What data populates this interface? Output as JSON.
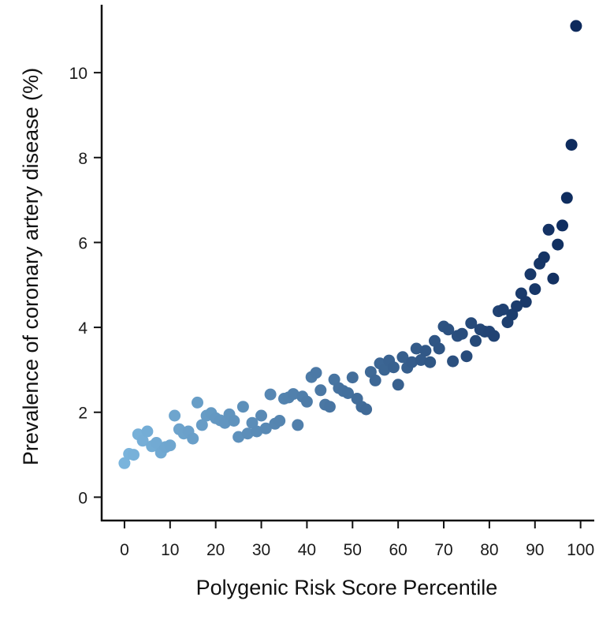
{
  "chart_data": {
    "type": "scatter",
    "title": "",
    "xlabel": "Polygenic Risk Score Percentile",
    "ylabel": "Prevalence of coronary artery disease (%)",
    "xlim": [
      -5,
      103
    ],
    "ylim": [
      -0.55,
      11.6
    ],
    "xticks": [
      0,
      10,
      20,
      30,
      40,
      50,
      60,
      70,
      80,
      90,
      100
    ],
    "yticks": [
      0,
      2,
      4,
      6,
      8,
      10
    ],
    "grid": false,
    "legend": "none",
    "colors": {
      "low": "#7ab4dc",
      "high": "#0d2a5c",
      "axis": "#111111"
    },
    "points": [
      [
        0,
        0.8
      ],
      [
        1,
        1.02
      ],
      [
        2,
        1.0
      ],
      [
        3,
        1.48
      ],
      [
        4,
        1.33
      ],
      [
        5,
        1.55
      ],
      [
        6,
        1.2
      ],
      [
        7,
        1.28
      ],
      [
        8,
        1.05
      ],
      [
        9,
        1.18
      ],
      [
        10,
        1.22
      ],
      [
        11,
        1.92
      ],
      [
        12,
        1.6
      ],
      [
        13,
        1.5
      ],
      [
        14,
        1.55
      ],
      [
        15,
        1.38
      ],
      [
        16,
        2.23
      ],
      [
        17,
        1.7
      ],
      [
        18,
        1.92
      ],
      [
        19,
        1.98
      ],
      [
        20,
        1.86
      ],
      [
        21,
        1.81
      ],
      [
        22,
        1.75
      ],
      [
        23,
        1.95
      ],
      [
        24,
        1.8
      ],
      [
        25,
        1.42
      ],
      [
        26,
        2.13
      ],
      [
        27,
        1.5
      ],
      [
        28,
        1.75
      ],
      [
        29,
        1.55
      ],
      [
        30,
        1.92
      ],
      [
        31,
        1.62
      ],
      [
        32,
        2.42
      ],
      [
        33,
        1.73
      ],
      [
        34,
        1.8
      ],
      [
        35,
        2.32
      ],
      [
        36,
        2.35
      ],
      [
        37,
        2.43
      ],
      [
        38,
        1.7
      ],
      [
        39,
        2.37
      ],
      [
        40,
        2.25
      ],
      [
        41,
        2.83
      ],
      [
        42,
        2.93
      ],
      [
        43,
        2.52
      ],
      [
        44,
        2.18
      ],
      [
        45,
        2.13
      ],
      [
        46,
        2.77
      ],
      [
        47,
        2.57
      ],
      [
        48,
        2.5
      ],
      [
        49,
        2.45
      ],
      [
        50,
        2.82
      ],
      [
        51,
        2.32
      ],
      [
        52,
        2.13
      ],
      [
        53,
        2.07
      ],
      [
        54,
        2.95
      ],
      [
        55,
        2.75
      ],
      [
        56,
        3.15
      ],
      [
        57,
        3.0
      ],
      [
        58,
        3.22
      ],
      [
        59,
        3.06
      ],
      [
        60,
        2.65
      ],
      [
        61,
        3.3
      ],
      [
        62,
        3.05
      ],
      [
        63,
        3.18
      ],
      [
        64,
        3.5
      ],
      [
        65,
        3.23
      ],
      [
        66,
        3.45
      ],
      [
        67,
        3.18
      ],
      [
        68,
        3.68
      ],
      [
        69,
        3.5
      ],
      [
        70,
        4.02
      ],
      [
        71,
        3.95
      ],
      [
        72,
        3.2
      ],
      [
        73,
        3.8
      ],
      [
        74,
        3.85
      ],
      [
        75,
        3.32
      ],
      [
        76,
        4.1
      ],
      [
        77,
        3.68
      ],
      [
        78,
        3.95
      ],
      [
        79,
        3.9
      ],
      [
        80,
        3.9
      ],
      [
        81,
        3.8
      ],
      [
        82,
        4.38
      ],
      [
        83,
        4.42
      ],
      [
        84,
        4.12
      ],
      [
        85,
        4.3
      ],
      [
        86,
        4.5
      ],
      [
        87,
        4.8
      ],
      [
        88,
        4.6
      ],
      [
        89,
        5.25
      ],
      [
        90,
        4.9
      ],
      [
        91,
        5.5
      ],
      [
        92,
        5.65
      ],
      [
        93,
        6.3
      ],
      [
        94,
        5.15
      ],
      [
        95,
        5.95
      ],
      [
        96,
        6.4
      ],
      [
        97,
        7.05
      ],
      [
        98,
        8.3
      ],
      [
        99,
        11.1
      ]
    ]
  }
}
